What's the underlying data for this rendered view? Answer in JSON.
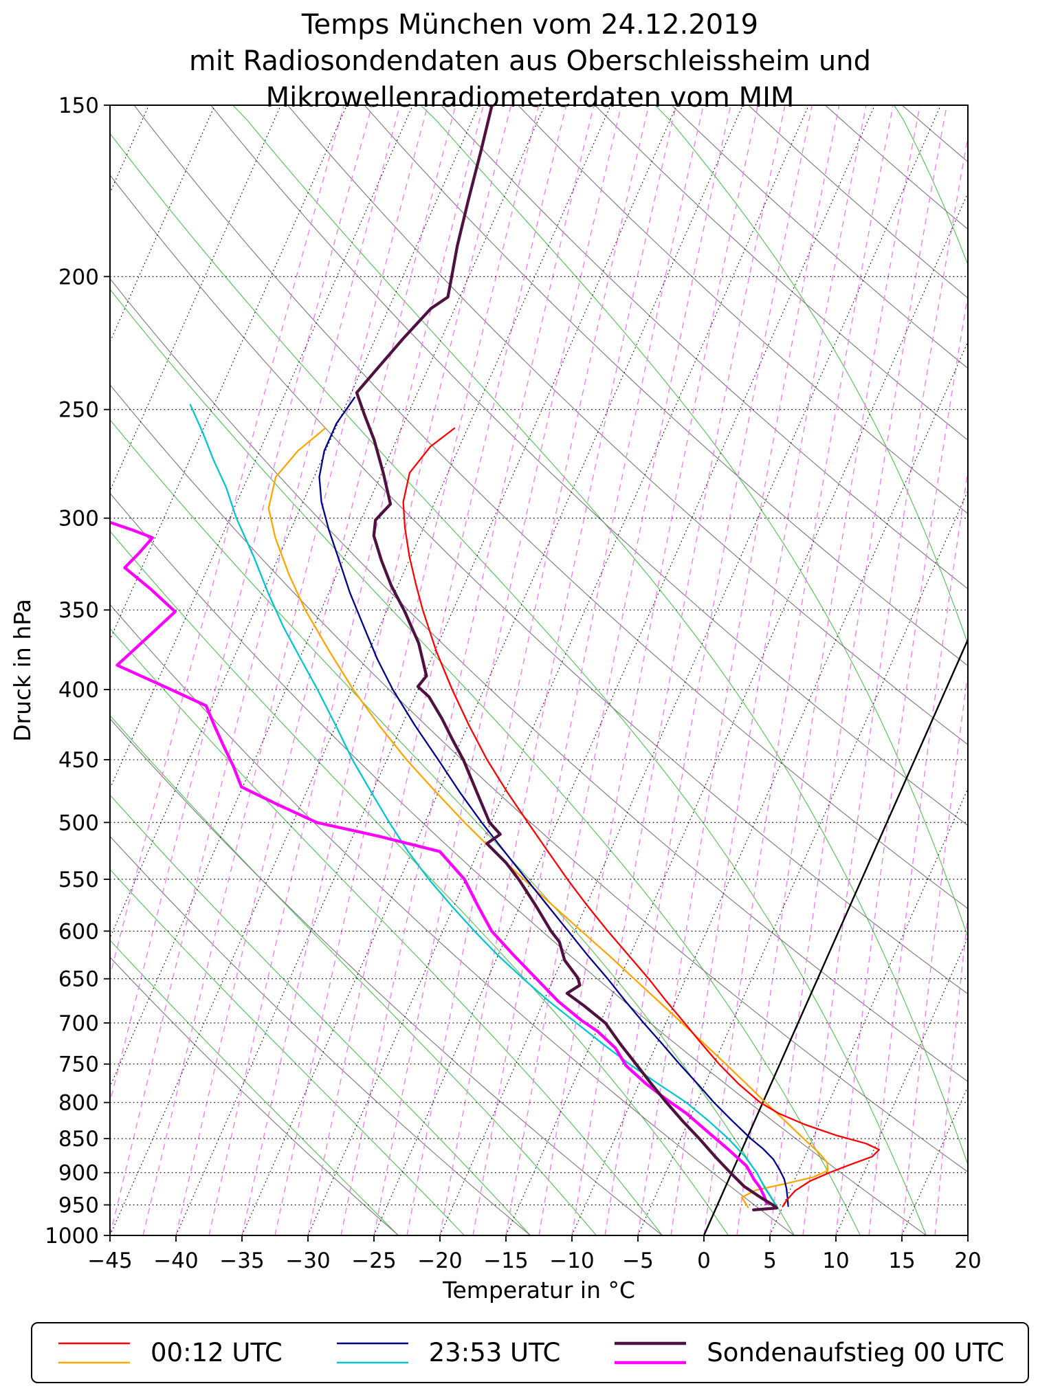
{
  "chart_data": {
    "type": "line",
    "title_lines": [
      "Temps München vom 24.12.2019",
      "mit Radiosondendaten aus Oberschleissheim und",
      "Mikrowellenradiometerdaten vom MIM"
    ],
    "xlabel": "Temperatur in °C",
    "ylabel": "Druck in hPa",
    "skew_factor": 20,
    "x_axis": {
      "min": -45,
      "max": 20,
      "ticks": [
        -45,
        -40,
        -35,
        -30,
        -25,
        -20,
        -15,
        -10,
        -5,
        0,
        5,
        10,
        15,
        20
      ],
      "tick_labels": [
        "−45",
        "−40",
        "−35",
        "−30",
        "−25",
        "−20",
        "−15",
        "−10",
        "−5",
        "0",
        "5",
        "10",
        "15",
        "20"
      ]
    },
    "y_axis": {
      "scale": "log",
      "top_pressure": 150,
      "bottom_pressure": 1000,
      "ticks": [
        150,
        200,
        250,
        300,
        350,
        400,
        450,
        500,
        550,
        600,
        650,
        700,
        750,
        800,
        850,
        900,
        950,
        1000
      ],
      "tick_labels": [
        "150",
        "200",
        "250",
        "300",
        "350",
        "400",
        "450",
        "500",
        "550",
        "600",
        "650",
        "700",
        "750",
        "800",
        "850",
        "900",
        "950",
        "1000"
      ]
    },
    "grid": {
      "isobar_step_hpa": 50,
      "isotherms_c": {
        "start": -110,
        "end": 40,
        "step": 5
      },
      "zero_isotherm_c": 0,
      "dry_adiabats_k": {
        "start": 250,
        "end": 440,
        "step": 10
      },
      "moist_adiabats_k": {
        "start": 250,
        "end": 320,
        "step": 5
      },
      "mixing_ratio_td_c": {
        "start": -50,
        "end": 25,
        "step": 2.5
      }
    },
    "colors": {
      "red": "#ff0000",
      "orange": "#ffa500",
      "blue": "#00008b",
      "cyan": "#00c5cd",
      "darkpurple": "#4e1140",
      "magenta": "#ff00ff",
      "grid_green": "#60c060",
      "grid_gray": "#808080",
      "grid_pink": "#ee82ee",
      "grid_black": "#000000"
    },
    "series": [
      {
        "id": "0012utc-dewpoint",
        "color_key": "orange",
        "width": 2.3,
        "points": [
          [
            258,
            -55.8
          ],
          [
            268,
            -57.1
          ],
          [
            280,
            -57.9
          ],
          [
            295,
            -57.4
          ],
          [
            310,
            -55.9
          ],
          [
            330,
            -53.6
          ],
          [
            350,
            -51.2
          ],
          [
            375,
            -48.0
          ],
          [
            400,
            -44.9
          ],
          [
            425,
            -41.7
          ],
          [
            450,
            -38.5
          ],
          [
            475,
            -35.2
          ],
          [
            500,
            -32.0
          ],
          [
            525,
            -28.8
          ],
          [
            550,
            -25.6
          ],
          [
            575,
            -22.5
          ],
          [
            600,
            -19.5
          ],
          [
            625,
            -16.6
          ],
          [
            650,
            -13.9
          ],
          [
            675,
            -11.3
          ],
          [
            700,
            -8.8
          ],
          [
            725,
            -6.4
          ],
          [
            750,
            -4.1
          ],
          [
            775,
            -1.9
          ],
          [
            800,
            0.2
          ],
          [
            825,
            2.3
          ],
          [
            850,
            4.3
          ],
          [
            870,
            5.9
          ],
          [
            885,
            6.9
          ],
          [
            897,
            7.2
          ],
          [
            907,
            6.3
          ],
          [
            917,
            4.4
          ],
          [
            927,
            2.4
          ],
          [
            938,
            1.6
          ],
          [
            948,
            2.1
          ],
          [
            954,
            2.4
          ]
        ]
      },
      {
        "id": "2353utc-dewpoint",
        "color_key": "cyan",
        "width": 2.3,
        "points": [
          [
            248,
            -66.8
          ],
          [
            260,
            -64.9
          ],
          [
            272,
            -63.2
          ],
          [
            285,
            -61.3
          ],
          [
            300,
            -59.5
          ],
          [
            320,
            -56.9
          ],
          [
            340,
            -54.6
          ],
          [
            360,
            -52.3
          ],
          [
            380,
            -49.9
          ],
          [
            400,
            -47.6
          ],
          [
            425,
            -45.0
          ],
          [
            450,
            -42.6
          ],
          [
            475,
            -40.1
          ],
          [
            500,
            -37.7
          ],
          [
            525,
            -35.3
          ],
          [
            550,
            -32.8
          ],
          [
            575,
            -30.2
          ],
          [
            600,
            -27.6
          ],
          [
            625,
            -25.0
          ],
          [
            650,
            -22.3
          ],
          [
            675,
            -19.6
          ],
          [
            700,
            -16.8
          ],
          [
            725,
            -14.1
          ],
          [
            750,
            -11.4
          ],
          [
            775,
            -8.6
          ],
          [
            800,
            -5.8
          ],
          [
            825,
            -3.5
          ],
          [
            850,
            -1.4
          ],
          [
            875,
            0.4
          ],
          [
            900,
            1.9
          ],
          [
            925,
            3.1
          ],
          [
            940,
            3.9
          ],
          [
            950,
            4.4
          ]
        ]
      },
      {
        "id": "2353utc-temperature",
        "color_key": "blue",
        "width": 2.3,
        "points": [
          [
            245,
            -54.6
          ],
          [
            256,
            -55.1
          ],
          [
            268,
            -55.1
          ],
          [
            280,
            -54.6
          ],
          [
            292,
            -53.6
          ],
          [
            306,
            -52.1
          ],
          [
            322,
            -50.3
          ],
          [
            340,
            -48.4
          ],
          [
            360,
            -46.2
          ],
          [
            380,
            -44.1
          ],
          [
            400,
            -41.9
          ],
          [
            425,
            -39.0
          ],
          [
            450,
            -36.1
          ],
          [
            475,
            -33.4
          ],
          [
            500,
            -30.7
          ],
          [
            525,
            -28.0
          ],
          [
            550,
            -25.4
          ],
          [
            575,
            -22.9
          ],
          [
            600,
            -20.5
          ],
          [
            625,
            -18.2
          ],
          [
            650,
            -15.9
          ],
          [
            675,
            -13.8
          ],
          [
            700,
            -11.7
          ],
          [
            725,
            -9.6
          ],
          [
            750,
            -7.6
          ],
          [
            775,
            -5.6
          ],
          [
            800,
            -3.7
          ],
          [
            825,
            -1.7
          ],
          [
            850,
            0.3
          ],
          [
            865,
            1.6
          ],
          [
            880,
            2.7
          ],
          [
            895,
            3.5
          ],
          [
            910,
            4.2
          ],
          [
            925,
            4.7
          ],
          [
            940,
            5.1
          ],
          [
            952,
            5.4
          ]
        ]
      },
      {
        "id": "0012utc-temperature",
        "color_key": "red",
        "width": 2.3,
        "points": [
          [
            258,
            -46.0
          ],
          [
            266,
            -47.2
          ],
          [
            278,
            -47.9
          ],
          [
            292,
            -47.4
          ],
          [
            305,
            -46.4
          ],
          [
            320,
            -45.1
          ],
          [
            335,
            -43.7
          ],
          [
            350,
            -42.3
          ],
          [
            375,
            -39.9
          ],
          [
            400,
            -37.4
          ],
          [
            425,
            -34.9
          ],
          [
            450,
            -32.4
          ],
          [
            475,
            -29.8
          ],
          [
            500,
            -27.2
          ],
          [
            525,
            -24.7
          ],
          [
            550,
            -22.3
          ],
          [
            575,
            -19.9
          ],
          [
            600,
            -17.5
          ],
          [
            625,
            -15.1
          ],
          [
            650,
            -12.8
          ],
          [
            675,
            -10.7
          ],
          [
            700,
            -8.6
          ],
          [
            725,
            -6.6
          ],
          [
            750,
            -4.6
          ],
          [
            775,
            -2.5
          ],
          [
            800,
            -0.2
          ],
          [
            815,
            1.6
          ],
          [
            830,
            3.9
          ],
          [
            845,
            6.6
          ],
          [
            857,
            9.2
          ],
          [
            866,
            10.4
          ],
          [
            876,
            10.1
          ],
          [
            888,
            8.7
          ],
          [
            900,
            7.4
          ],
          [
            913,
            6.2
          ],
          [
            928,
            5.4
          ],
          [
            942,
            5.1
          ],
          [
            952,
            5.0
          ]
        ]
      },
      {
        "id": "sonde00utc-dewpoint",
        "color_key": "magenta",
        "width": 4.3,
        "points": [
          [
            302,
            -69.0
          ],
          [
            306,
            -67.0
          ],
          [
            310,
            -65.2
          ],
          [
            318,
            -65.7
          ],
          [
            326,
            -66.3
          ],
          [
            338,
            -63.6
          ],
          [
            351,
            -61.0
          ],
          [
            366,
            -62.2
          ],
          [
            384,
            -63.6
          ],
          [
            397,
            -59.6
          ],
          [
            411,
            -55.5
          ],
          [
            425,
            -54.2
          ],
          [
            440,
            -52.8
          ],
          [
            455,
            -51.4
          ],
          [
            471,
            -50.1
          ],
          [
            485,
            -46.8
          ],
          [
            500,
            -43.2
          ],
          [
            512,
            -37.9
          ],
          [
            525,
            -32.9
          ],
          [
            550,
            -30.1
          ],
          [
            575,
            -28.2
          ],
          [
            600,
            -26.3
          ],
          [
            625,
            -23.8
          ],
          [
            650,
            -21.3
          ],
          [
            675,
            -18.9
          ],
          [
            697,
            -16.5
          ],
          [
            710,
            -14.9
          ],
          [
            730,
            -13.0
          ],
          [
            752,
            -11.6
          ],
          [
            775,
            -9.5
          ],
          [
            795,
            -7.5
          ],
          [
            815,
            -5.4
          ],
          [
            838,
            -3.4
          ],
          [
            866,
            -1.0
          ],
          [
            890,
            0.9
          ],
          [
            910,
            1.9
          ],
          [
            922,
            2.6
          ],
          [
            935,
            3.2
          ],
          [
            948,
            3.7
          ]
        ]
      },
      {
        "id": "sonde00utc-temperature",
        "color_key": "darkpurple",
        "width": 4.3,
        "points": [
          [
            150,
            -54.0
          ],
          [
            162,
            -53.3
          ],
          [
            176,
            -52.6
          ],
          [
            190,
            -51.9
          ],
          [
            200,
            -51.3
          ],
          [
            207,
            -50.9
          ],
          [
            211,
            -51.8
          ],
          [
            222,
            -52.9
          ],
          [
            234,
            -53.9
          ],
          [
            243,
            -54.6
          ],
          [
            252,
            -53.3
          ],
          [
            263,
            -51.7
          ],
          [
            278,
            -49.9
          ],
          [
            293,
            -48.3
          ],
          [
            301,
            -48.9
          ],
          [
            309,
            -48.5
          ],
          [
            322,
            -47.1
          ],
          [
            336,
            -45.5
          ],
          [
            351,
            -43.6
          ],
          [
            370,
            -41.5
          ],
          [
            391,
            -39.8
          ],
          [
            398,
            -40.1
          ],
          [
            405,
            -38.9
          ],
          [
            420,
            -37.2
          ],
          [
            435,
            -35.7
          ],
          [
            450,
            -34.2
          ],
          [
            475,
            -32.1
          ],
          [
            500,
            -30.1
          ],
          [
            510,
            -28.9
          ],
          [
            518,
            -29.6
          ],
          [
            535,
            -27.5
          ],
          [
            551,
            -25.9
          ],
          [
            575,
            -23.8
          ],
          [
            600,
            -21.8
          ],
          [
            611,
            -20.8
          ],
          [
            630,
            -19.8
          ],
          [
            649,
            -18.2
          ],
          [
            657,
            -17.8
          ],
          [
            666,
            -18.5
          ],
          [
            680,
            -16.8
          ],
          [
            700,
            -14.6
          ],
          [
            726,
            -12.7
          ],
          [
            750,
            -10.9
          ],
          [
            775,
            -9.1
          ],
          [
            800,
            -7.3
          ],
          [
            826,
            -5.4
          ],
          [
            850,
            -3.6
          ],
          [
            876,
            -1.8
          ],
          [
            900,
            -0.1
          ],
          [
            921,
            1.4
          ],
          [
            939,
            3.1
          ],
          [
            950,
            4.2
          ],
          [
            955,
            4.6
          ],
          [
            957,
            3.5
          ],
          [
            958,
            2.9
          ]
        ]
      }
    ],
    "legend": {
      "entries": [
        {
          "label": "00:12 UTC",
          "color_keys": [
            "red",
            "orange"
          ]
        },
        {
          "label": "23:53 UTC",
          "color_keys": [
            "blue",
            "cyan"
          ]
        },
        {
          "label": "Sondenaufstieg 00 UTC",
          "color_keys": [
            "darkpurple",
            "magenta"
          ]
        }
      ]
    }
  }
}
